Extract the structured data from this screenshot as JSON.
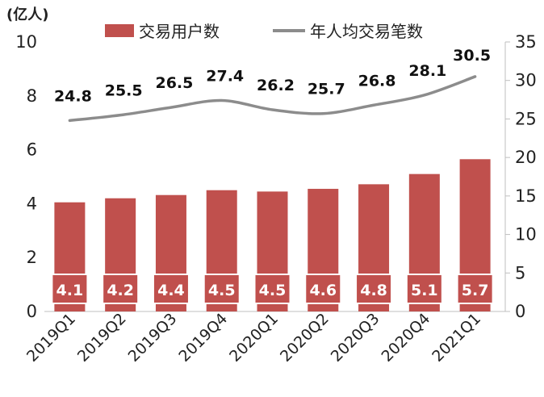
{
  "chart_data": {
    "type": "bar",
    "categories": [
      "2019Q1",
      "2019Q2",
      "2019Q3",
      "2019Q4",
      "2020Q1",
      "2020Q2",
      "2020Q3",
      "2020Q4",
      "2021Q1"
    ],
    "y_left_unit": "(亿人)",
    "y_left_range": [
      0,
      10
    ],
    "y_left_ticks": [
      "0",
      "2",
      "4",
      "6",
      "8",
      "10"
    ],
    "y_right_range": [
      0,
      35
    ],
    "y_right_ticks": [
      "0",
      "5",
      "10",
      "15",
      "20",
      "25",
      "30",
      "35"
    ],
    "series": [
      {
        "name": "交易用户数",
        "type": "bar",
        "axis": "left",
        "color": "#c0504d",
        "values": [
          4.1,
          4.2,
          4.4,
          4.5,
          4.5,
          4.6,
          4.8,
          5.1,
          5.7
        ],
        "bar_heights": [
          4.05,
          4.2,
          4.32,
          4.5,
          4.45,
          4.55,
          4.72,
          5.1,
          5.65
        ]
      },
      {
        "name": "年人均交易笔数",
        "type": "line",
        "axis": "right",
        "color": "#8c8c8c",
        "values": [
          24.8,
          25.5,
          26.5,
          27.4,
          26.2,
          25.7,
          26.8,
          28.1,
          30.5
        ]
      }
    ],
    "legend_position": "top",
    "grid": false
  }
}
